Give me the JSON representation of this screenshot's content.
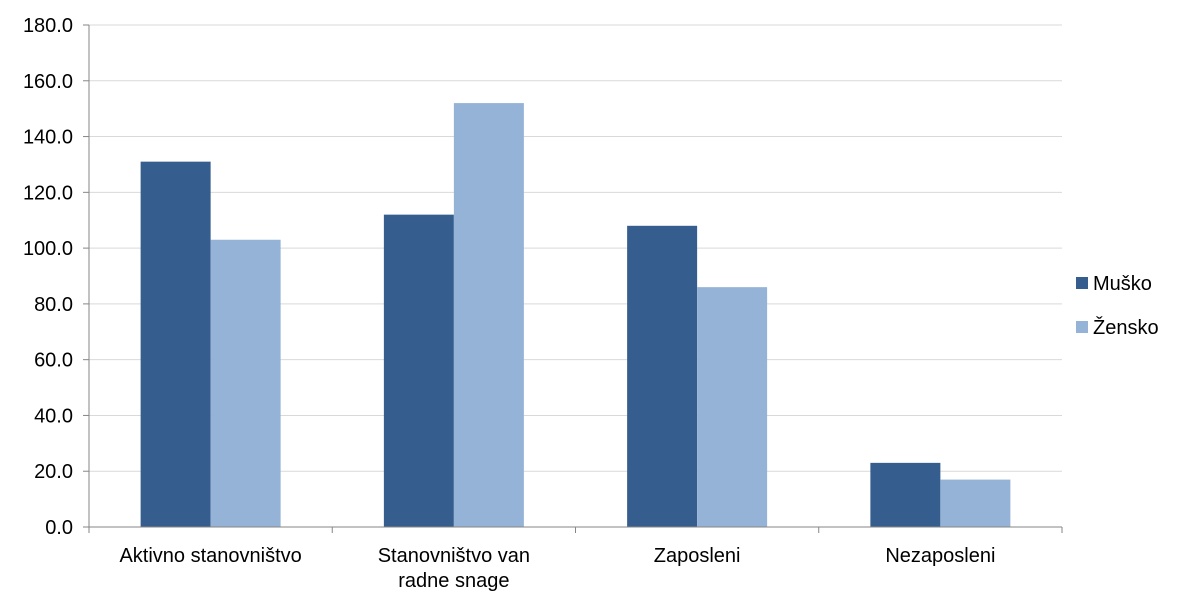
{
  "chart_data": {
    "type": "bar",
    "categories": [
      [
        "Aktivno stanovništvo"
      ],
      [
        "Stanovništvo van",
        "radne snage"
      ],
      [
        "Zaposleni"
      ],
      [
        "Nezaposleni"
      ]
    ],
    "series": [
      {
        "name": "Muško",
        "values": [
          131.0,
          112.0,
          108.0,
          23.0
        ],
        "color": "#355E8F"
      },
      {
        "name": "Žensko",
        "values": [
          103.0,
          152.0,
          86.0,
          17.0
        ],
        "color": "#95B3D7"
      }
    ],
    "ylim": [
      0,
      180
    ],
    "yticks": [
      "0.0",
      "20.0",
      "40.0",
      "60.0",
      "80.0",
      "100.0",
      "120.0",
      "140.0",
      "160.0",
      "180.0"
    ],
    "grid": true,
    "legend": "right"
  }
}
